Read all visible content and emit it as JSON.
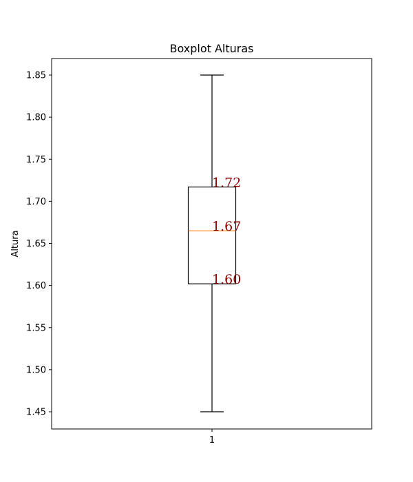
{
  "chart_data": {
    "type": "boxplot",
    "title": "Boxplot Alturas",
    "xlabel": "",
    "ylabel": "Altura",
    "categories": [
      "1"
    ],
    "ylim": [
      1.43,
      1.87
    ],
    "yticks": [
      1.45,
      1.5,
      1.55,
      1.6,
      1.65,
      1.7,
      1.75,
      1.8,
      1.85
    ],
    "ytick_labels": [
      "1.45",
      "1.50",
      "1.55",
      "1.60",
      "1.65",
      "1.70",
      "1.75",
      "1.80",
      "1.85"
    ],
    "grid": false,
    "box": {
      "whisker_low": 1.45,
      "q1": 1.602,
      "median": 1.665,
      "q3": 1.717,
      "whisker_high": 1.85
    },
    "annotations": [
      {
        "text": "1.72",
        "y": 1.717
      },
      {
        "text": "1.67",
        "y": 1.665
      },
      {
        "text": "1.60",
        "y": 1.602
      }
    ],
    "colors": {
      "box": "#000000",
      "median": "#ff7f0e",
      "annotation": "#8b0000"
    }
  }
}
